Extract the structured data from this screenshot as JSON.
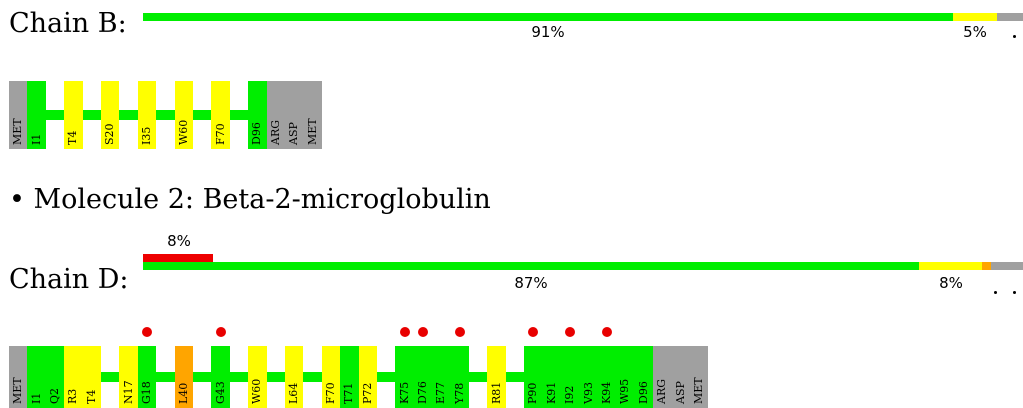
{
  "colors": {
    "green": "#00ee00",
    "yellow": "#ffff00",
    "orange": "#ffa500",
    "red": "#ee0000",
    "gray": "#a0a0a0",
    "outlier_dot": "#e80000"
  },
  "chainB": {
    "label": "Chain B:",
    "quality": {
      "green_pct": 91,
      "yellow_pct": 5,
      "label_green": "91%",
      "label_yellow": "5%",
      "dot_marks": 1
    },
    "residues": [
      {
        "code": "MET",
        "color": "gray"
      },
      {
        "code": "I1",
        "color": "green"
      },
      {
        "code": "T4",
        "color": "yellow"
      },
      {
        "code": "S20",
        "color": "yellow"
      },
      {
        "code": "I35",
        "color": "yellow"
      },
      {
        "code": "W60",
        "color": "yellow"
      },
      {
        "code": "F70",
        "color": "yellow"
      },
      {
        "code": "D96",
        "color": "green"
      },
      {
        "code": "ARG",
        "color": "gray"
      },
      {
        "code": "ASP",
        "color": "gray"
      },
      {
        "code": "MET",
        "color": "gray"
      }
    ]
  },
  "molecule2": {
    "heading": "• Molecule 2: Beta-2-microglobulin"
  },
  "chainD": {
    "label": "Chain D:",
    "quality": {
      "red_pct": 8,
      "label_red": "8%",
      "green_pct": 87,
      "yellow_pct": 8,
      "label_green": "87%",
      "label_yellow": "8%",
      "dot_marks": 2
    },
    "residues": [
      {
        "code": "MET",
        "color": "gray"
      },
      {
        "code": "I1",
        "color": "green"
      },
      {
        "code": "Q2",
        "color": "green"
      },
      {
        "code": "R3",
        "color": "yellow"
      },
      {
        "code": "T4",
        "color": "yellow"
      },
      {
        "code": "N17",
        "color": "yellow"
      },
      {
        "code": "G18",
        "color": "green",
        "outlier": true
      },
      {
        "code": "L40",
        "color": "orange"
      },
      {
        "code": "G43",
        "color": "green",
        "outlier": true
      },
      {
        "code": "W60",
        "color": "yellow"
      },
      {
        "code": "L64",
        "color": "yellow"
      },
      {
        "code": "F70",
        "color": "yellow"
      },
      {
        "code": "T71",
        "color": "green"
      },
      {
        "code": "P72",
        "color": "yellow"
      },
      {
        "code": "K75",
        "color": "green",
        "outlier": true
      },
      {
        "code": "D76",
        "color": "green",
        "outlier": true
      },
      {
        "code": "E77",
        "color": "green"
      },
      {
        "code": "Y78",
        "color": "green",
        "outlier": true
      },
      {
        "code": "R81",
        "color": "yellow"
      },
      {
        "code": "P90",
        "color": "green",
        "outlier": true
      },
      {
        "code": "K91",
        "color": "green"
      },
      {
        "code": "I92",
        "color": "green",
        "outlier": true
      },
      {
        "code": "V93",
        "color": "green"
      },
      {
        "code": "K94",
        "color": "green",
        "outlier": true
      },
      {
        "code": "W95",
        "color": "green"
      },
      {
        "code": "D96",
        "color": "green"
      },
      {
        "code": "ARG",
        "color": "gray"
      },
      {
        "code": "ASP",
        "color": "gray"
      },
      {
        "code": "MET",
        "color": "gray"
      }
    ]
  }
}
